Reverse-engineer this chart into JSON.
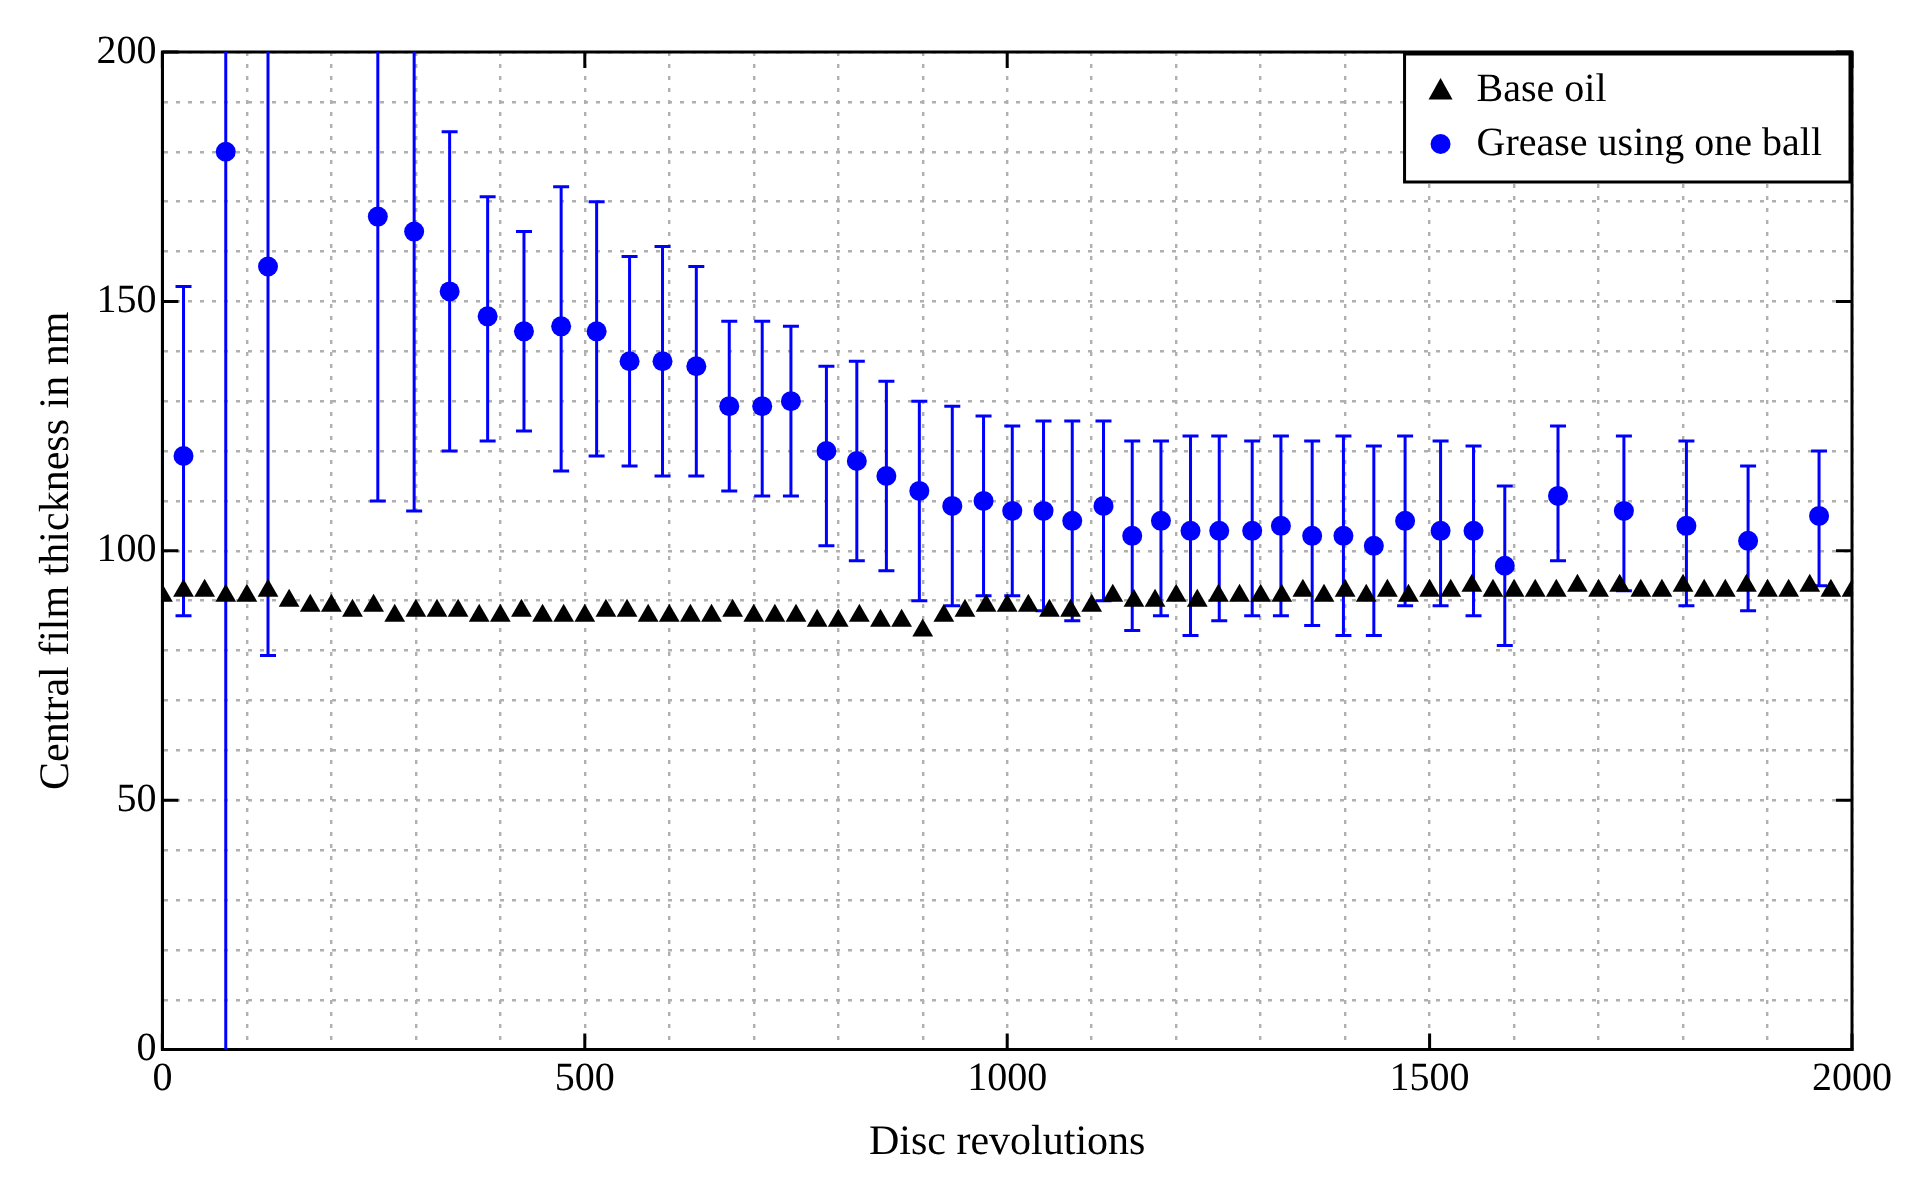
{
  "chart_data": {
    "type": "scatter",
    "xlabel": "Disc revolutions",
    "ylabel": "Central film thickness in nm",
    "xlim": [
      0,
      2000
    ],
    "ylim": [
      0,
      200
    ],
    "xticks": [
      0,
      {
        "value": 100,
        "label": null
      },
      {
        "value": 200,
        "label": null
      },
      {
        "value": 300,
        "label": null
      },
      {
        "value": 400,
        "label": null
      },
      500,
      {
        "value": 600,
        "label": null
      },
      {
        "value": 700,
        "label": null
      },
      {
        "value": 800,
        "label": null
      },
      {
        "value": 900,
        "label": null
      },
      1000,
      {
        "value": 1100,
        "label": null
      },
      {
        "value": 1200,
        "label": null
      },
      {
        "value": 1300,
        "label": null
      },
      {
        "value": 1400,
        "label": null
      },
      1500,
      {
        "value": 1600,
        "label": null
      },
      {
        "value": 1700,
        "label": null
      },
      {
        "value": 1800,
        "label": null
      },
      {
        "value": 1900,
        "label": null
      },
      2000
    ],
    "yticks": [
      0,
      {
        "value": 10,
        "label": null
      },
      {
        "value": 20,
        "label": null
      },
      {
        "value": 30,
        "label": null
      },
      {
        "value": 40,
        "label": null
      },
      50,
      {
        "value": 60,
        "label": null
      },
      {
        "value": 70,
        "label": null
      },
      {
        "value": 80,
        "label": null
      },
      {
        "value": 90,
        "label": null
      },
      100,
      {
        "value": 110,
        "label": null
      },
      {
        "value": 120,
        "label": null
      },
      {
        "value": 130,
        "label": null
      },
      {
        "value": 140,
        "label": null
      },
      150,
      {
        "value": 160,
        "label": null
      },
      {
        "value": 170,
        "label": null
      },
      {
        "value": 180,
        "label": null
      },
      {
        "value": 190,
        "label": null
      },
      200
    ],
    "grid": true,
    "legend": "top right",
    "series": [
      {
        "name": "Base oil",
        "color": "#000000",
        "marker": "triangle",
        "x": [
          0,
          25,
          50,
          75,
          100,
          125,
          150,
          175,
          200,
          225,
          250,
          275,
          300,
          325,
          350,
          375,
          400,
          425,
          450,
          475,
          500,
          525,
          550,
          575,
          600,
          625,
          650,
          675,
          700,
          725,
          750,
          775,
          800,
          825,
          850,
          875,
          900,
          925,
          950,
          975,
          1000,
          1025,
          1050,
          1075,
          1100,
          1125,
          1150,
          1175,
          1200,
          1225,
          1250,
          1275,
          1300,
          1325,
          1350,
          1375,
          1400,
          1425,
          1450,
          1475,
          1500,
          1525,
          1550,
          1575,
          1600,
          1625,
          1650,
          1675,
          1700,
          1725,
          1750,
          1775,
          1800,
          1825,
          1850,
          1875,
          1900,
          1925,
          1950,
          1975,
          2000
        ],
        "values": [
          91,
          92,
          92,
          91,
          91,
          92,
          90,
          89,
          89,
          88,
          89,
          87,
          88,
          88,
          88,
          87,
          87,
          88,
          87,
          87,
          87,
          88,
          88,
          87,
          87,
          87,
          87,
          88,
          87,
          87,
          87,
          86,
          86,
          87,
          86,
          86,
          84,
          87,
          88,
          89,
          89,
          89,
          88,
          88,
          89,
          91,
          90,
          90,
          91,
          90,
          91,
          91,
          91,
          91,
          92,
          91,
          92,
          91,
          92,
          91,
          92,
          92,
          93,
          92,
          92,
          92,
          92,
          93,
          92,
          93,
          92,
          92,
          93,
          92,
          92,
          93,
          92,
          92,
          93,
          92,
          92
        ]
      },
      {
        "name": "Grease using one ball",
        "color": "#0000ff",
        "marker": "circle",
        "x": [
          25,
          75,
          125,
          255,
          298,
          340,
          385,
          428,
          472,
          514,
          553,
          592,
          632,
          671,
          710,
          744,
          786,
          822,
          857,
          896,
          935,
          972,
          1006,
          1043,
          1077,
          1114,
          1148,
          1182,
          1217,
          1251,
          1290,
          1324,
          1361,
          1398,
          1434,
          1471,
          1513,
          1552,
          1589,
          1652,
          1730,
          1804,
          1877,
          1961
        ],
        "values": [
          119,
          180,
          157,
          167,
          164,
          152,
          147,
          144,
          145,
          144,
          138,
          138,
          137,
          129,
          129,
          130,
          120,
          118,
          115,
          112,
          109,
          110,
          108,
          108,
          106,
          109,
          103,
          106,
          104,
          104,
          104,
          105,
          103,
          103,
          101,
          106,
          104,
          104,
          97,
          111,
          108,
          105,
          102,
          107
        ],
        "errors": [
          [
            87,
            153
          ],
          [
            0,
            200
          ],
          [
            79,
            200
          ],
          [
            110,
            200
          ],
          [
            108,
            200
          ],
          [
            120,
            184
          ],
          [
            122,
            171
          ],
          [
            124,
            164
          ],
          [
            116,
            173
          ],
          [
            119,
            170
          ],
          [
            117,
            159
          ],
          [
            115,
            161
          ],
          [
            115,
            157
          ],
          [
            112,
            146
          ],
          [
            111,
            146
          ],
          [
            111,
            145
          ],
          [
            101,
            137
          ],
          [
            98,
            138
          ],
          [
            96,
            134
          ],
          [
            90,
            130
          ],
          [
            89,
            129
          ],
          [
            91,
            127
          ],
          [
            91,
            125
          ],
          [
            88,
            126
          ],
          [
            86,
            126
          ],
          [
            90,
            126
          ],
          [
            84,
            122
          ],
          [
            87,
            122
          ],
          [
            83,
            123
          ],
          [
            86,
            123
          ],
          [
            87,
            122
          ],
          [
            87,
            123
          ],
          [
            85,
            122
          ],
          [
            83,
            123
          ],
          [
            83,
            121
          ],
          [
            89,
            123
          ],
          [
            89,
            122
          ],
          [
            87,
            121
          ],
          [
            81,
            113
          ],
          [
            98,
            125
          ],
          [
            92,
            123
          ],
          [
            89,
            122
          ],
          [
            88,
            117
          ],
          [
            93,
            120
          ]
        ]
      }
    ]
  }
}
